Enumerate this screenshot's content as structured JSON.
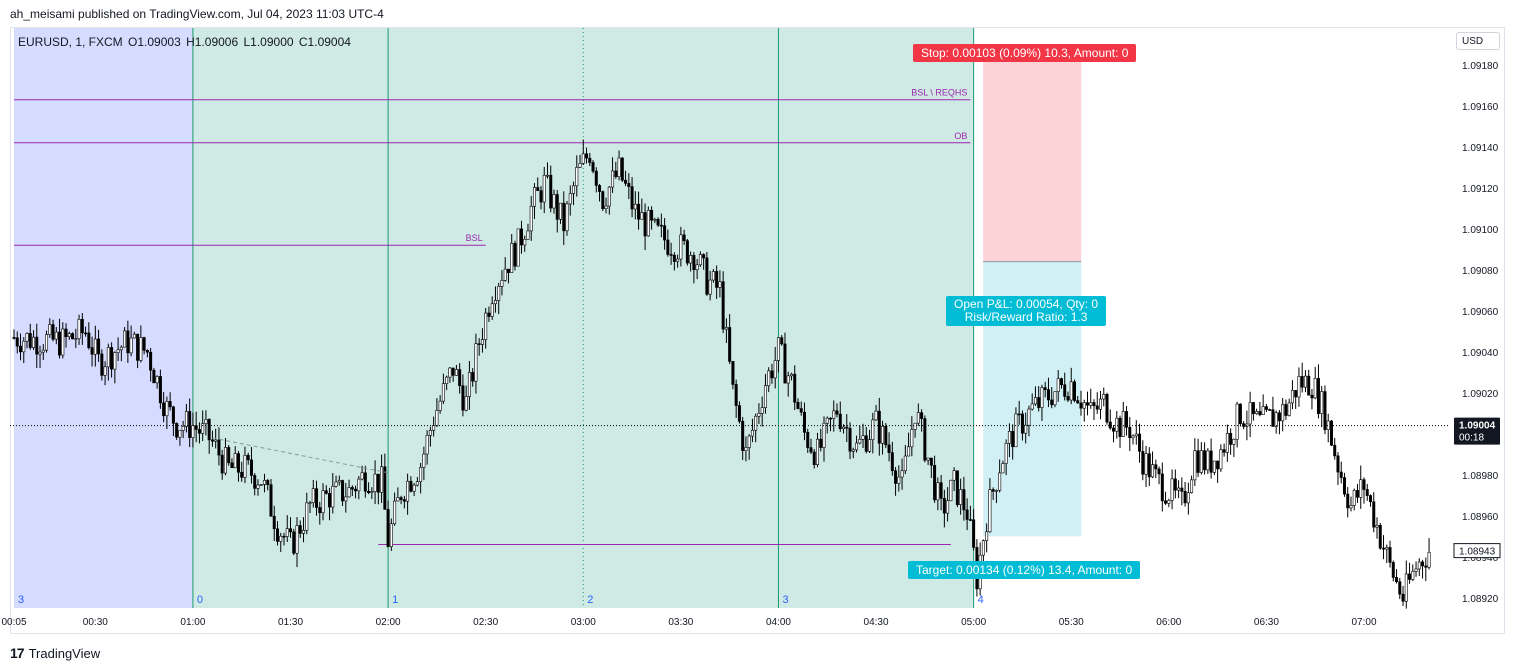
{
  "header": {
    "publisher_line": "ah_meisami published on TradingView.com, Jul 04, 2023 11:03 UTC-4"
  },
  "symbol_info": {
    "symbol": "EURUSD, 1, FXCM",
    "open": "O1.09003",
    "high": "H1.09006",
    "low": "L1.09000",
    "close": "C1.09004"
  },
  "currency_button": "USD",
  "footer": {
    "brand": "TradingView",
    "logo_glyph": "17"
  },
  "position": {
    "stop_label": "Stop: 0.00103 (0.09%) 10.3, Amount: 0",
    "pnl_line1": "Open P&L: 0.00054, Qty: 0",
    "pnl_line2": "Risk/Reward Ratio: 1.3",
    "target_label": "Target: 0.00134 (0.12%) 13.4, Amount: 0"
  },
  "colors": {
    "candle": "#000000",
    "session_asia": "#d6dcff",
    "session_london": "#cfeae5",
    "stop_zone": "#fcd4d7",
    "target_zone": "#d1f0f5",
    "level_line": "#9c27b0",
    "session_line": "#1b9a6e",
    "session_number": "#2962ff",
    "price_tag": "#131722"
  },
  "chart_data": {
    "type": "candlestick",
    "x_tick_labels": [
      "00:05",
      "00:30",
      "01:00",
      "01:30",
      "02:00",
      "02:30",
      "03:00",
      "03:30",
      "04:00",
      "04:30",
      "05:00",
      "05:30",
      "06:00",
      "06:30",
      "07:00"
    ],
    "x_tick_minutes": [
      5,
      30,
      60,
      90,
      120,
      150,
      180,
      210,
      240,
      270,
      300,
      330,
      360,
      390,
      420
    ],
    "x_range_minutes": [
      5,
      440
    ],
    "y_tick_labels": [
      "1.09180",
      "1.09160",
      "1.09140",
      "1.09120",
      "1.09100",
      "1.09080",
      "1.09060",
      "1.09040",
      "1.09020",
      "1.09000",
      "1.08980",
      "1.08960",
      "1.08940",
      "1.08920"
    ],
    "y_range": [
      1.08915,
      1.09198
    ],
    "last_price": {
      "value": "1.09004",
      "countdown": "00:18",
      "price": 1.09004
    },
    "right_price_tag": {
      "value": "1.08943",
      "price": 1.08943
    },
    "sessions": [
      {
        "name": "asia",
        "start": 5,
        "end": 60
      },
      {
        "name": "london",
        "start": 60,
        "end": 300
      }
    ],
    "session_lines": [
      {
        "minute": 60,
        "style": "solid"
      },
      {
        "minute": 120,
        "style": "solid"
      },
      {
        "minute": 180,
        "style": "dotted"
      },
      {
        "minute": 240,
        "style": "solid"
      },
      {
        "minute": 300,
        "style": "solid"
      }
    ],
    "session_numbers": [
      {
        "minute": 5,
        "label": "3"
      },
      {
        "minute": 60,
        "label": "0"
      },
      {
        "minute": 120,
        "label": "1"
      },
      {
        "minute": 180,
        "label": "2"
      },
      {
        "minute": 240,
        "label": "3"
      },
      {
        "minute": 300,
        "label": "4"
      }
    ],
    "levels": [
      {
        "label": "BSL \\ REQHS",
        "price": 1.09163,
        "start": 5,
        "end": 299,
        "label_anchor": "end"
      },
      {
        "label": "OB",
        "price": 1.09142,
        "start": 5,
        "end": 299,
        "label_anchor": "end"
      },
      {
        "label": "BSL",
        "price": 1.09092,
        "start": 5,
        "end": 150,
        "label_anchor": "end"
      },
      {
        "label": "",
        "price": 1.08946,
        "start": 117,
        "end": 293,
        "label_anchor": "end"
      }
    ],
    "trend_line": {
      "start": {
        "minute": 66,
        "price": 1.08998
      },
      "end": {
        "minute": 120,
        "price": 1.08981
      }
    },
    "position_tool": {
      "start": 306,
      "end": 330,
      "entry": 1.09084,
      "stop": 1.09187,
      "target": 1.0895
    },
    "candle_anchors": [
      [
        5,
        1.09047
      ],
      [
        20,
        1.09045
      ],
      [
        27,
        1.0905
      ],
      [
        31,
        1.09035
      ],
      [
        40,
        1.09045
      ],
      [
        46,
        1.0904
      ],
      [
        52,
        1.09012
      ],
      [
        55,
        1.09005
      ],
      [
        60,
        1.09004
      ],
      [
        65,
        1.08998
      ],
      [
        71,
        1.08983
      ],
      [
        76,
        1.08983
      ],
      [
        81,
        1.08978
      ],
      [
        86,
        1.08955
      ],
      [
        90,
        1.08945
      ],
      [
        96,
        1.08965
      ],
      [
        102,
        1.0897
      ],
      [
        108,
        1.08972
      ],
      [
        113,
        1.0898
      ],
      [
        118,
        1.08976
      ],
      [
        120,
        1.08948
      ],
      [
        124,
        1.08972
      ],
      [
        130,
        1.08985
      ],
      [
        134,
        1.09008
      ],
      [
        140,
        1.09032
      ],
      [
        144,
        1.09015
      ],
      [
        148,
        1.09045
      ],
      [
        152,
        1.0907
      ],
      [
        156,
        1.09082
      ],
      [
        160,
        1.09092
      ],
      [
        164,
        1.0911
      ],
      [
        168,
        1.09122
      ],
      [
        174,
        1.09102
      ],
      [
        178,
        1.09126
      ],
      [
        182,
        1.09138
      ],
      [
        186,
        1.09115
      ],
      [
        191,
        1.09128
      ],
      [
        196,
        1.09108
      ],
      [
        202,
        1.09098
      ],
      [
        208,
        1.09092
      ],
      [
        214,
        1.09088
      ],
      [
        218,
        1.09075
      ],
      [
        222,
        1.0907
      ],
      [
        226,
        1.0902
      ],
      [
        230,
        1.0899
      ],
      [
        236,
        1.09025
      ],
      [
        240,
        1.0904
      ],
      [
        244,
        1.09025
      ],
      [
        248,
        1.09
      ],
      [
        252,
        1.0899
      ],
      [
        258,
        1.09012
      ],
      [
        264,
        1.08993
      ],
      [
        270,
        1.09005
      ],
      [
        274,
        1.08992
      ],
      [
        278,
        1.08975
      ],
      [
        282,
        1.09012
      ],
      [
        286,
        1.08988
      ],
      [
        290,
        1.08962
      ],
      [
        294,
        1.08975
      ],
      [
        298,
        1.08962
      ],
      [
        301,
        1.0893
      ],
      [
        304,
        1.0896
      ],
      [
        308,
        1.08985
      ],
      [
        312,
        1.09
      ],
      [
        318,
        1.09012
      ],
      [
        324,
        1.0902
      ],
      [
        330,
        1.09025
      ],
      [
        336,
        1.0901
      ],
      [
        340,
        1.09015
      ],
      [
        344,
        1.09005
      ],
      [
        348,
        1.09003
      ],
      [
        352,
        1.08988
      ],
      [
        356,
        1.08978
      ],
      [
        360,
        1.08972
      ],
      [
        364,
        1.08965
      ],
      [
        368,
        1.0899
      ],
      [
        372,
        1.08985
      ],
      [
        376,
        1.08992
      ],
      [
        382,
        1.0901
      ],
      [
        388,
        1.09005
      ],
      [
        392,
        1.09008
      ],
      [
        396,
        1.09012
      ],
      [
        400,
        1.09025
      ],
      [
        404,
        1.09025
      ],
      [
        408,
        1.0901
      ],
      [
        412,
        1.08985
      ],
      [
        416,
        1.08965
      ],
      [
        420,
        1.08975
      ],
      [
        424,
        1.08955
      ],
      [
        428,
        1.08935
      ],
      [
        432,
        1.0892
      ],
      [
        436,
        1.08935
      ],
      [
        440,
        1.08943
      ]
    ]
  }
}
